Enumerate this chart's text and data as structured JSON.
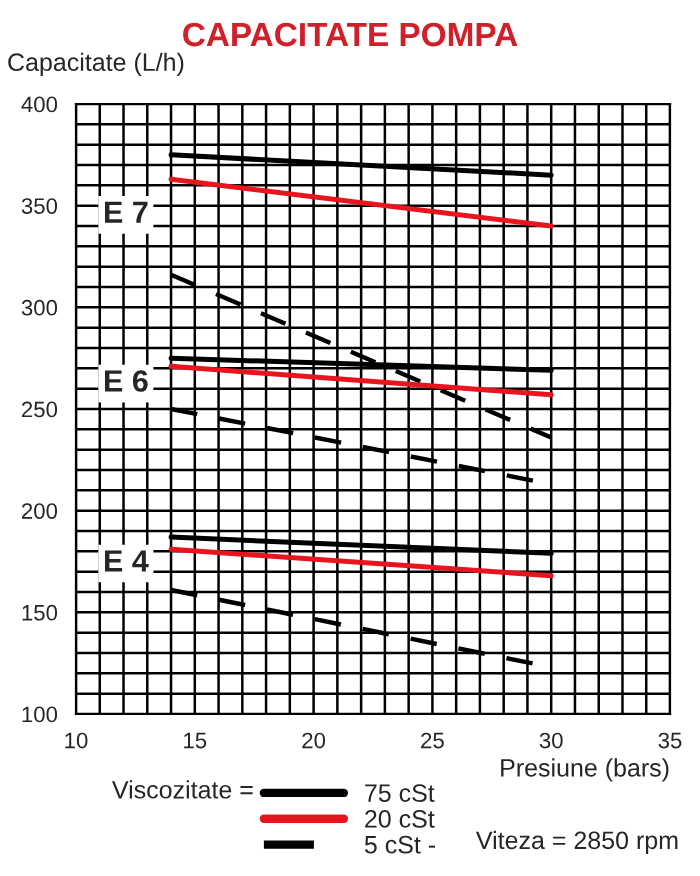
{
  "chart_data": {
    "type": "line",
    "title": "CAPACITATE POMPA",
    "ylabel": "Capacitate (L/h)",
    "xlabel": "Presiune (bars)",
    "legend_title": "Viscozitate =",
    "xlim": [
      10,
      35
    ],
    "xticks": [
      10,
      15,
      20,
      25,
      30,
      35
    ],
    "ylim": [
      100,
      400
    ],
    "yticks": [
      100,
      150,
      200,
      250,
      300,
      350,
      400
    ],
    "grid": true,
    "legend": "bottom",
    "marker": "none",
    "x": [
      14,
      30
    ],
    "series": [
      {
        "name": "75 cSt",
        "color": "#000000",
        "line_style": "solid",
        "values": [
          375,
          365
        ]
      },
      {
        "name": "20 cSt",
        "color": "#e8141e",
        "line_style": "solid",
        "values": [
          363,
          340
        ]
      },
      {
        "name": "5 cSt -",
        "color": "#000000",
        "line_style": "dashed",
        "values": [
          316,
          236
        ]
      },
      {
        "color": "#000000",
        "line_style": "solid",
        "values": [
          275,
          269
        ]
      },
      {
        "color": "#e8141e",
        "line_style": "solid",
        "values": [
          271,
          257
        ]
      },
      {
        "color": "#000000",
        "line_style": "dashed",
        "values": [
          250,
          213
        ]
      },
      {
        "color": "#000000",
        "line_style": "solid",
        "values": [
          187,
          179
        ]
      },
      {
        "color": "#e8141e",
        "line_style": "solid",
        "values": [
          181,
          168
        ]
      },
      {
        "color": "#000000",
        "line_style": "dashed",
        "values": [
          161,
          123
        ]
      }
    ],
    "annotations": [
      "E 7",
      "E 6",
      "E 4",
      "Viteza = 2850 rpm"
    ]
  }
}
